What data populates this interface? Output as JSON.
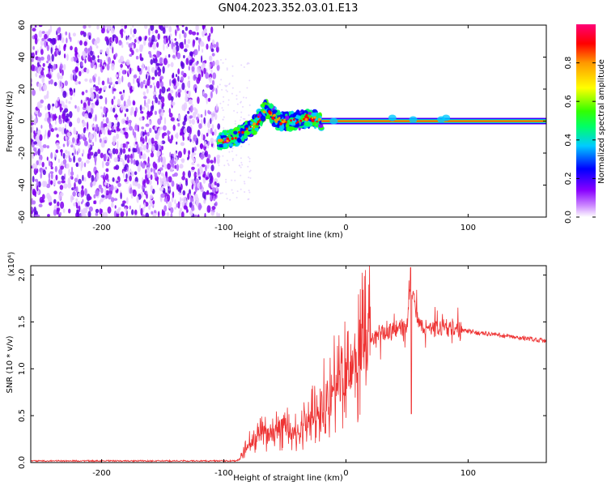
{
  "figure_title": "GN04.2023.352.03.01.E13",
  "chart_data": [
    {
      "type": "heatmap",
      "name": "spectrogram",
      "title": "",
      "xlabel": "Height of straight line (km)",
      "ylabel": "Frequency (Hz)",
      "xlim": [
        -258,
        164
      ],
      "ylim": [
        -60,
        60
      ],
      "xticks": [
        -200,
        -100,
        0,
        100
      ],
      "yticks": [
        -60,
        -40,
        -20,
        0,
        20,
        40,
        60
      ],
      "grid": false,
      "colorbar": {
        "label": "Normalized spectral amplitude",
        "range": [
          0,
          1
        ],
        "ticks": [
          "0.0",
          "0.2",
          "0.4",
          "0.6",
          "0.8"
        ],
        "colormap": [
          "#ffffff",
          "#9900ff",
          "#0000ff",
          "#00ccff",
          "#00ff66",
          "#33ff00",
          "#ffff00",
          "#ff9900",
          "#ff0000",
          "#ff0077"
        ]
      },
      "regions": [
        {
          "x_range": [
            -258,
            -104
          ],
          "freq_range": [
            -60,
            60
          ],
          "level": "noise 0.1–0.3"
        },
        {
          "x_range": [
            -104,
            -20
          ],
          "center_freq": [
            [
              -104,
              -12
            ],
            [
              -90,
              -10
            ],
            [
              -75,
              -3
            ],
            [
              -65,
              8
            ],
            [
              -55,
              0
            ],
            [
              -42,
              0
            ],
            [
              -30,
              2
            ],
            [
              -20,
              0
            ]
          ],
          "level": "0.3–0.8"
        },
        {
          "x_range": [
            -20,
            164
          ],
          "center_freq_hz": 0,
          "level": "1.0"
        }
      ]
    },
    {
      "type": "line",
      "name": "snr",
      "title": "",
      "xlabel": "Height of straight line (km)",
      "ylabel": "SNR (10 * v/v)",
      "y_scale_note": "(x10⁴)",
      "xlim": [
        -258,
        164
      ],
      "ylim": [
        0,
        2.1
      ],
      "xticks": [
        -200,
        -100,
        0,
        100
      ],
      "yticks": [
        0.0,
        0.5,
        1.0,
        1.5,
        2.0
      ],
      "grid": false,
      "series": [
        {
          "color": "#ee3333",
          "x": [
            -258,
            -200,
            -150,
            -100,
            -88,
            -80,
            -70,
            -60,
            -50,
            -40,
            -30,
            -20,
            -10,
            0,
            10,
            20,
            30,
            40,
            50,
            53,
            60,
            70,
            80,
            90,
            100,
            110,
            120,
            130,
            140,
            150,
            164
          ],
          "y": [
            0.0,
            0.0,
            0.0,
            0.0,
            0.02,
            0.2,
            0.3,
            0.3,
            0.4,
            0.3,
            0.45,
            0.65,
            0.8,
            1.0,
            1.15,
            1.3,
            1.38,
            1.42,
            1.45,
            1.9,
            1.45,
            1.42,
            1.45,
            1.42,
            1.4,
            1.38,
            1.37,
            1.35,
            1.33,
            1.32,
            1.3
          ]
        }
      ]
    }
  ]
}
